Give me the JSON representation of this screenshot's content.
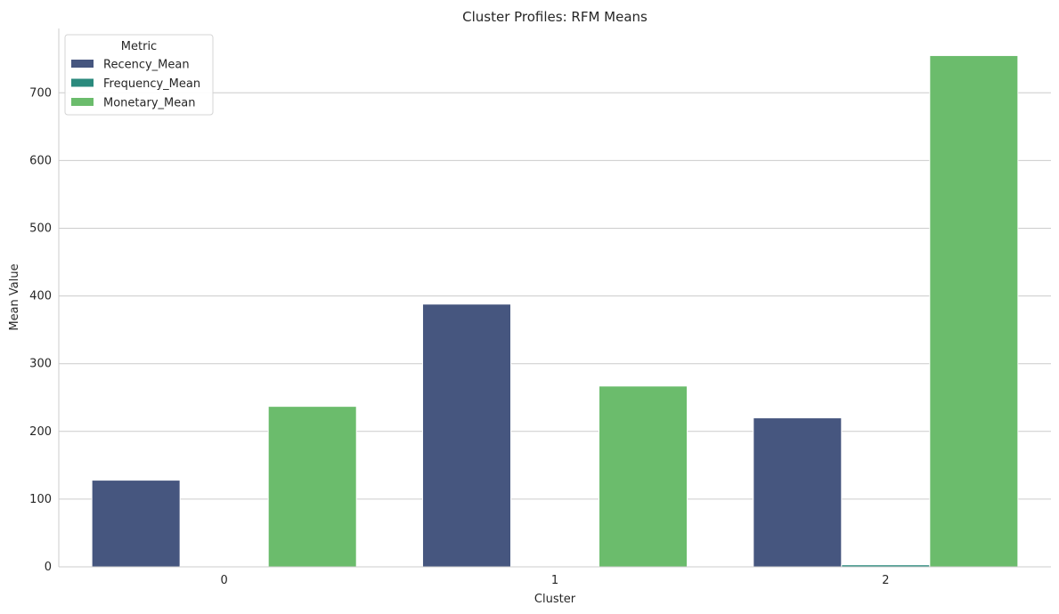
{
  "chart_data": {
    "type": "bar",
    "title": "Cluster Profiles: RFM Means",
    "xlabel": "Cluster",
    "ylabel": "Mean Value",
    "categories": [
      "0",
      "1",
      "2"
    ],
    "ylim": [
      0,
      795
    ],
    "yticks": [
      0,
      100,
      200,
      300,
      400,
      500,
      600,
      700
    ],
    "grid": "horizontal",
    "legend": {
      "title": "Metric",
      "position": "top-left"
    },
    "series": [
      {
        "name": "Recency_Mean",
        "color": "#46567f",
        "values": [
          128,
          388,
          220
        ]
      },
      {
        "name": "Frequency_Mean",
        "color": "#2a8a7d",
        "values": [
          1,
          1,
          3
        ]
      },
      {
        "name": "Monetary_Mean",
        "color": "#6bbc6c",
        "values": [
          237,
          267,
          755
        ]
      }
    ]
  }
}
